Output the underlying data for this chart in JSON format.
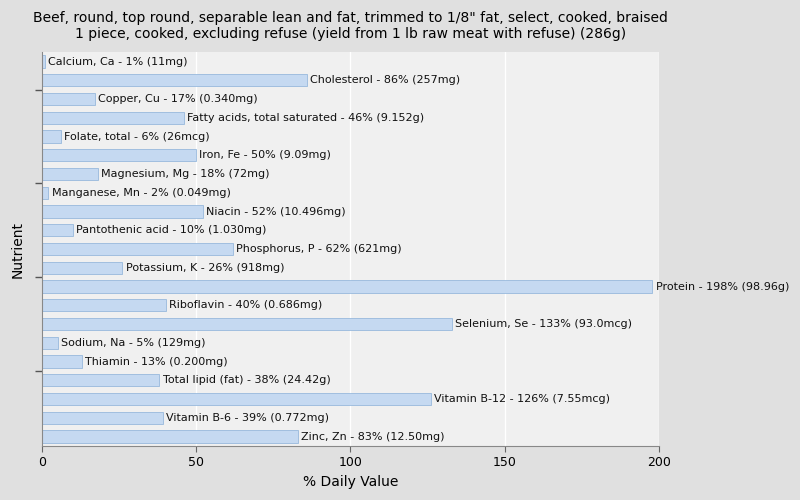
{
  "title": "Beef, round, top round, separable lean and fat, trimmed to 1/8\" fat, select, cooked, braised\n1 piece, cooked, excluding refuse (yield from 1 lb raw meat with refuse) (286g)",
  "xlabel": "% Daily Value",
  "ylabel": "Nutrient",
  "xlim": [
    0,
    200
  ],
  "xticks": [
    0,
    50,
    100,
    150,
    200
  ],
  "nutrients": [
    "Calcium, Ca - 1% (11mg)",
    "Cholesterol - 86% (257mg)",
    "Copper, Cu - 17% (0.340mg)",
    "Fatty acids, total saturated - 46% (9.152g)",
    "Folate, total - 6% (26mcg)",
    "Iron, Fe - 50% (9.09mg)",
    "Magnesium, Mg - 18% (72mg)",
    "Manganese, Mn - 2% (0.049mg)",
    "Niacin - 52% (10.496mg)",
    "Pantothenic acid - 10% (1.030mg)",
    "Phosphorus, P - 62% (621mg)",
    "Potassium, K - 26% (918mg)",
    "Protein - 198% (98.96g)",
    "Riboflavin - 40% (0.686mg)",
    "Selenium, Se - 133% (93.0mcg)",
    "Sodium, Na - 5% (129mg)",
    "Thiamin - 13% (0.200mg)",
    "Total lipid (fat) - 38% (24.42g)",
    "Vitamin B-12 - 126% (7.55mcg)",
    "Vitamin B-6 - 39% (0.772mg)",
    "Zinc, Zn - 83% (12.50mg)"
  ],
  "values": [
    1,
    86,
    17,
    46,
    6,
    50,
    18,
    2,
    52,
    10,
    62,
    26,
    198,
    40,
    133,
    5,
    13,
    38,
    126,
    39,
    83
  ],
  "bar_color": "#c5d9f1",
  "bar_edgecolor": "#8ab0d8",
  "background_color": "#e0e0e0",
  "plot_background": "#f0f0f0",
  "title_fontsize": 10,
  "axis_label_fontsize": 10,
  "tick_fontsize": 9,
  "bar_label_fontsize": 8.0
}
